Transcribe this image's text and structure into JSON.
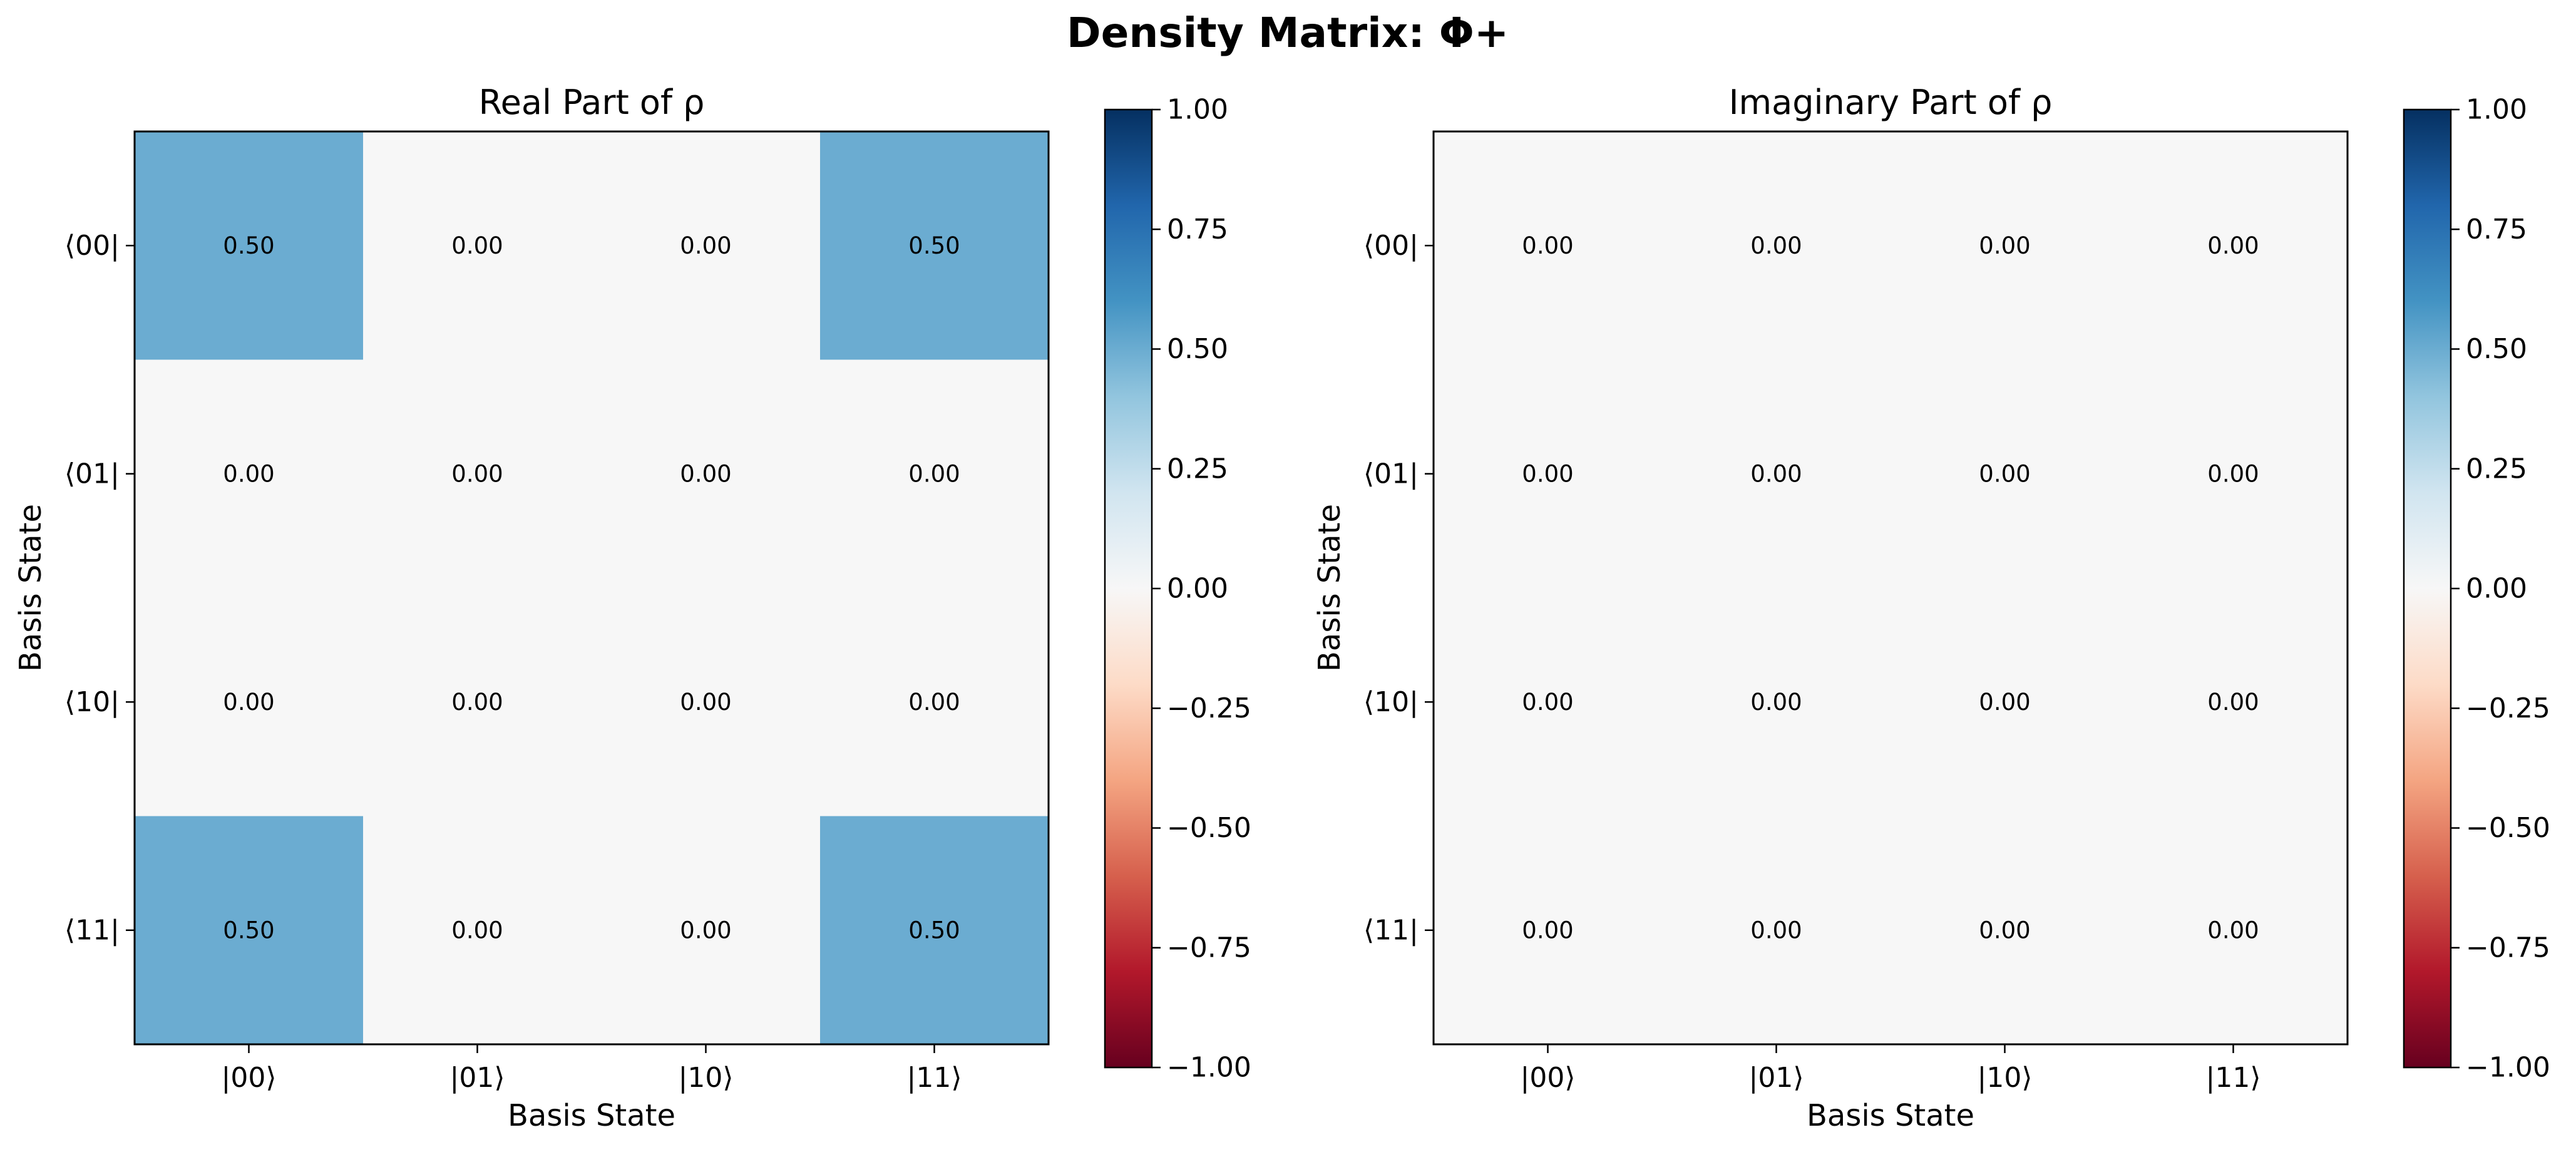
{
  "figure": {
    "title": "Density Matrix: Φ+"
  },
  "chart_data": [
    {
      "type": "heatmap",
      "title": "Real Part of ρ",
      "xlabel": "Basis State",
      "ylabel": "Basis State",
      "x_categories": [
        "|00⟩",
        "|01⟩",
        "|10⟩",
        "|11⟩"
      ],
      "y_categories": [
        "⟨00|",
        "⟨01|",
        "⟨10|",
        "⟨11|"
      ],
      "values": [
        [
          0.5,
          0.0,
          0.0,
          0.5
        ],
        [
          0.0,
          0.0,
          0.0,
          0.0
        ],
        [
          0.0,
          0.0,
          0.0,
          0.0
        ],
        [
          0.5,
          0.0,
          0.0,
          0.5
        ]
      ],
      "cell_labels": [
        [
          "0.50",
          "0.00",
          "0.00",
          "0.50"
        ],
        [
          "0.00",
          "0.00",
          "0.00",
          "0.00"
        ],
        [
          "0.00",
          "0.00",
          "0.00",
          "0.00"
        ],
        [
          "0.50",
          "0.00",
          "0.00",
          "0.50"
        ]
      ],
      "colormap": "RdBu",
      "vmin": -1.0,
      "vmax": 1.0,
      "colorbar_ticks": [
        "1.00",
        "0.75",
        "0.50",
        "0.25",
        "0.00",
        "−0.25",
        "−0.50",
        "−0.75",
        "−1.00"
      ]
    },
    {
      "type": "heatmap",
      "title": "Imaginary Part of ρ",
      "xlabel": "Basis State",
      "ylabel": "Basis State",
      "x_categories": [
        "|00⟩",
        "|01⟩",
        "|10⟩",
        "|11⟩"
      ],
      "y_categories": [
        "⟨00|",
        "⟨01|",
        "⟨10|",
        "⟨11|"
      ],
      "values": [
        [
          0.0,
          0.0,
          0.0,
          0.0
        ],
        [
          0.0,
          0.0,
          0.0,
          0.0
        ],
        [
          0.0,
          0.0,
          0.0,
          0.0
        ],
        [
          0.0,
          0.0,
          0.0,
          0.0
        ]
      ],
      "cell_labels": [
        [
          "0.00",
          "0.00",
          "0.00",
          "0.00"
        ],
        [
          "0.00",
          "0.00",
          "0.00",
          "0.00"
        ],
        [
          "0.00",
          "0.00",
          "0.00",
          "0.00"
        ],
        [
          "0.00",
          "0.00",
          "0.00",
          "0.00"
        ]
      ],
      "colormap": "RdBu",
      "vmin": -1.0,
      "vmax": 1.0,
      "colorbar_ticks": [
        "1.00",
        "0.75",
        "0.50",
        "0.25",
        "0.00",
        "−0.25",
        "−0.50",
        "−0.75",
        "−1.00"
      ]
    }
  ],
  "colors": {
    "rdbu_stops": [
      "#67001f",
      "#b2182b",
      "#d6604d",
      "#f4a582",
      "#fddbc7",
      "#f7f7f7",
      "#d1e5f0",
      "#92c5de",
      "#4393c3",
      "#2166ac",
      "#053061"
    ]
  }
}
